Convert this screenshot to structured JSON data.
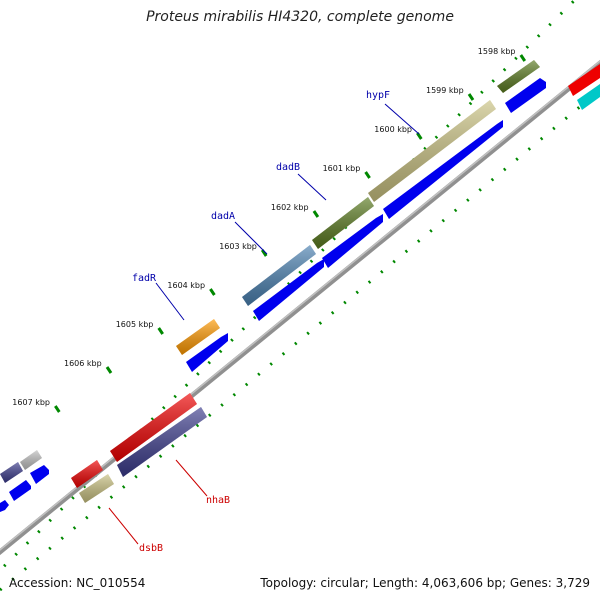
{
  "title": "Proteus mirabilis HI4320, complete genome",
  "footer": {
    "accession": "Accession: NC_010554",
    "stats": "Topology: circular; Length: 4,063,606 bp; Genes: 3,729"
  },
  "ticks": [
    {
      "label": "1598 kbp",
      "t": 0.04
    },
    {
      "label": "1599 kbp",
      "t": 0.16
    },
    {
      "label": "1600 kbp",
      "t": 0.28
    },
    {
      "label": "1601 kbp",
      "t": 0.4
    },
    {
      "label": "1602 kbp",
      "t": 0.52
    },
    {
      "label": "1603 kbp",
      "t": 0.64
    },
    {
      "label": "1604 kbp",
      "t": 0.76
    },
    {
      "label": "1605 kbp",
      "t": 0.88
    },
    {
      "label": "1606 kbp",
      "t": 1.0
    },
    {
      "label": "1607 kbp",
      "t": 1.12
    }
  ],
  "gene_labels": {
    "hypF": "hypF",
    "dadB": "dadB",
    "dadA": "dadA",
    "fadR": "fadR",
    "nhaB": "nhaB",
    "dsbB": "dsbB"
  },
  "colors": {
    "label_blue": "#0000aa",
    "label_red": "#cc0000",
    "cds_blue": "#0000ee",
    "olive": "#5a7a20",
    "khaki": "#c8c080",
    "steel": "#4a80b0",
    "orange": "#ff9900",
    "red": "#ee0000",
    "indigo": "#3c3c8c",
    "cyan": "#00c8c8",
    "grey": "#c0c0c0",
    "backbone": "#808080",
    "tick_green": "#008800"
  }
}
